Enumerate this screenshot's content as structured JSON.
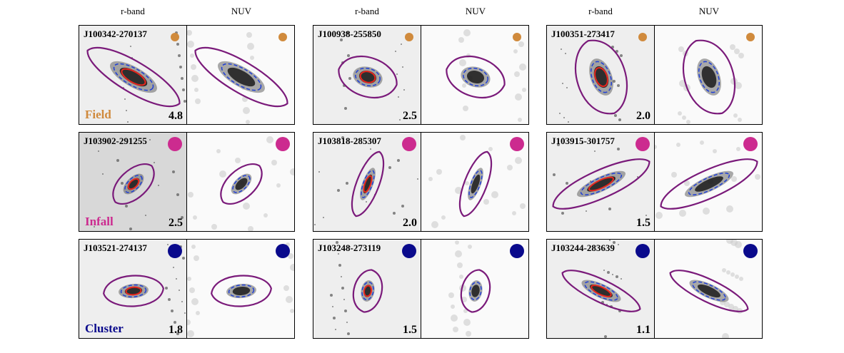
{
  "column_headers": [
    [
      "r-band",
      "NUV"
    ],
    [
      "r-band",
      "NUV"
    ],
    [
      "r-band",
      "NUV"
    ]
  ],
  "rows": [
    {
      "label": "Field",
      "color": "#d08a3c",
      "panels": [
        {
          "id": "J100342-270137",
          "number": "4.8"
        },
        {
          "id": "J100938-255850",
          "number": "2.5"
        },
        {
          "id": "J100351-273417",
          "number": "2.0"
        }
      ]
    },
    {
      "label": "Infall",
      "color": "#cc2b8f",
      "panels": [
        {
          "id": "J103902-291255",
          "number": "2.5"
        },
        {
          "id": "J103818-285307",
          "number": "2.0"
        },
        {
          "id": "J103915-301757",
          "number": "1.5"
        }
      ]
    },
    {
      "label": "Cluster",
      "color": "#0a0a8c",
      "panels": [
        {
          "id": "J103521-274137",
          "number": "1.8"
        },
        {
          "id": "J103248-273119",
          "number": "1.5"
        },
        {
          "id": "J103244-283639",
          "number": "1.1"
        }
      ]
    }
  ]
}
